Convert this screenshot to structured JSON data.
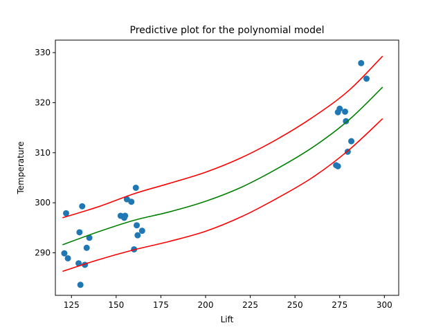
{
  "chart_data": {
    "type": "scatter",
    "title": "Predictive plot for the polynomial model",
    "xlabel": "Lift",
    "ylabel": "Temperature",
    "xlim": [
      116,
      308
    ],
    "ylim": [
      281.5,
      332.5
    ],
    "x_ticks": [
      125,
      150,
      175,
      200,
      225,
      250,
      275,
      300
    ],
    "y_ticks": [
      290,
      300,
      310,
      320,
      330
    ],
    "grid": false,
    "legend": "none",
    "points_color": "#1f77b4",
    "points": [
      {
        "x": 121,
        "y": 289.9
      },
      {
        "x": 122,
        "y": 297.9
      },
      {
        "x": 123,
        "y": 288.9
      },
      {
        "x": 129,
        "y": 287.9
      },
      {
        "x": 129.5,
        "y": 294.1
      },
      {
        "x": 130,
        "y": 283.6
      },
      {
        "x": 131,
        "y": 299.3
      },
      {
        "x": 132.5,
        "y": 287.6
      },
      {
        "x": 133.5,
        "y": 291.0
      },
      {
        "x": 135,
        "y": 293.0
      },
      {
        "x": 152.5,
        "y": 297.4
      },
      {
        "x": 154.5,
        "y": 297.0
      },
      {
        "x": 155,
        "y": 297.4
      },
      {
        "x": 156,
        "y": 300.7
      },
      {
        "x": 158.5,
        "y": 300.2
      },
      {
        "x": 160,
        "y": 290.7
      },
      {
        "x": 161,
        "y": 303.0
      },
      {
        "x": 161.5,
        "y": 295.5
      },
      {
        "x": 162,
        "y": 293.5
      },
      {
        "x": 164.5,
        "y": 294.4
      },
      {
        "x": 273,
        "y": 307.5
      },
      {
        "x": 274,
        "y": 307.3
      },
      {
        "x": 274,
        "y": 318.1
      },
      {
        "x": 275,
        "y": 318.8
      },
      {
        "x": 278,
        "y": 318.2
      },
      {
        "x": 278.5,
        "y": 316.3
      },
      {
        "x": 279.5,
        "y": 310.2
      },
      {
        "x": 281.5,
        "y": 312.3
      },
      {
        "x": 287,
        "y": 327.9
      },
      {
        "x": 290,
        "y": 324.8
      }
    ],
    "series": [
      {
        "role": "fit",
        "color": "#008000",
        "x": [
          120,
          140,
          160,
          180,
          200,
          220,
          240,
          260,
          280,
          299
        ],
        "y": [
          291.6,
          294.2,
          296.5,
          298.2,
          300.3,
          303.1,
          306.8,
          311.1,
          316.5,
          323.1
        ]
      },
      {
        "role": "upper",
        "color": "#ff0000",
        "x": [
          120,
          140,
          160,
          180,
          200,
          220,
          240,
          260,
          280,
          299
        ],
        "y": [
          297.0,
          299.2,
          301.8,
          303.9,
          306.1,
          309.0,
          312.7,
          317.1,
          322.4,
          329.3
        ]
      },
      {
        "role": "lower",
        "color": "#ff0000",
        "x": [
          120,
          140,
          160,
          180,
          200,
          220,
          240,
          260,
          280,
          299
        ],
        "y": [
          286.3,
          288.6,
          290.6,
          292.3,
          294.3,
          297.2,
          300.9,
          305.1,
          310.5,
          316.8
        ]
      }
    ]
  }
}
